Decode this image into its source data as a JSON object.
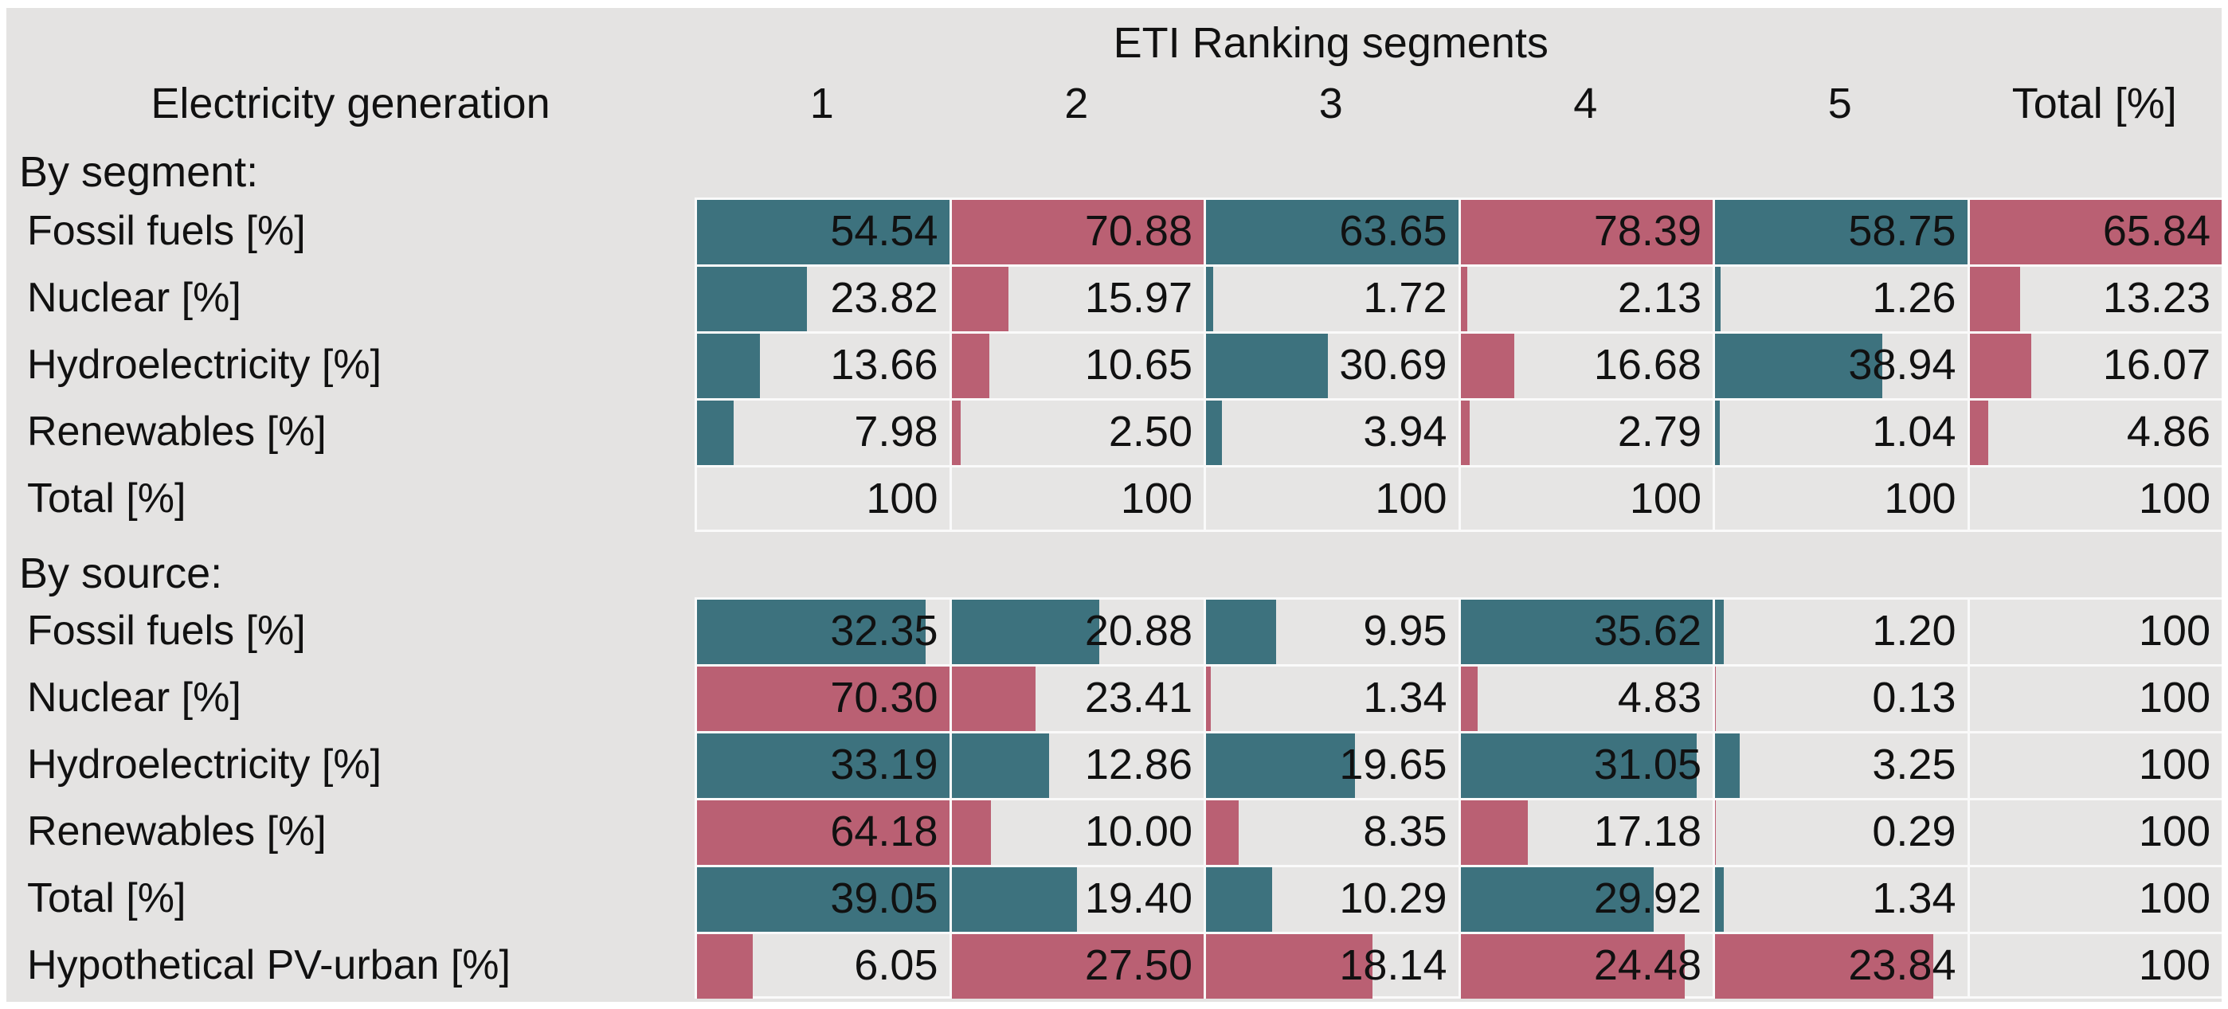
{
  "colors": {
    "teal": "#3d727e",
    "rose": "#ba6073",
    "panel_background": "#e4e3e2",
    "cell_background": "#e6e5e4",
    "separator": "#fafafa",
    "page_background": "#ffffff",
    "text": "#111111"
  },
  "table": {
    "title": "ETI Ranking segments",
    "row_header": "Electricity generation",
    "columns": [
      "1",
      "2",
      "3",
      "4",
      "5",
      "Total [%]"
    ],
    "sections": [
      {
        "label": "By segment:",
        "bar_scaling": "column",
        "column_colors": [
          "teal",
          "rose",
          "teal",
          "rose",
          "teal",
          "rose"
        ],
        "rows": [
          {
            "label": "Fossil fuels [%]",
            "values": [
              "54.54",
              "70.88",
              "63.65",
              "78.39",
              "58.75",
              "65.84"
            ]
          },
          {
            "label": "Nuclear [%]",
            "values": [
              "23.82",
              "15.97",
              "1.72",
              "2.13",
              "1.26",
              "13.23"
            ]
          },
          {
            "label": "Hydroelectricity [%]",
            "values": [
              "13.66",
              "10.65",
              "30.69",
              "16.68",
              "38.94",
              "16.07"
            ]
          },
          {
            "label": "Renewables [%]",
            "values": [
              "7.98",
              "2.50",
              "3.94",
              "2.79",
              "1.04",
              "4.86"
            ]
          }
        ],
        "total_row": {
          "label": "Total [%]",
          "values": [
            "100",
            "100",
            "100",
            "100",
            "100",
            "100"
          ]
        }
      },
      {
        "label": "By source:",
        "bar_scaling": "row",
        "no_bar_columns": [
          5
        ],
        "rows": [
          {
            "label": "Fossil fuels [%]",
            "color": "teal",
            "values": [
              "32.35",
              "20.88",
              "9.95",
              "35.62",
              "1.20",
              "100"
            ]
          },
          {
            "label": "Nuclear [%]",
            "color": "rose",
            "values": [
              "70.30",
              "23.41",
              "1.34",
              "4.83",
              "0.13",
              "100"
            ]
          },
          {
            "label": "Hydroelectricity [%]",
            "color": "teal",
            "values": [
              "33.19",
              "12.86",
              "19.65",
              "31.05",
              "3.25",
              "100"
            ]
          },
          {
            "label": "Renewables [%]",
            "color": "rose",
            "values": [
              "64.18",
              "10.00",
              "8.35",
              "17.18",
              "0.29",
              "100"
            ]
          },
          {
            "label": "Total [%]",
            "color": "teal",
            "values": [
              "39.05",
              "19.40",
              "10.29",
              "29.92",
              "1.34",
              "100"
            ]
          },
          {
            "label": "Hypothetical PV-urban [%]",
            "color": "rose",
            "values": [
              "6.05",
              "27.50",
              "18.14",
              "24.48",
              "23.84",
              "100"
            ]
          }
        ]
      }
    ]
  },
  "chart_data": [
    {
      "type": "table",
      "title": "ETI Ranking segments",
      "section": "Electricity generation — By segment:",
      "columns": [
        "1",
        "2",
        "3",
        "4",
        "5",
        "Total [%]"
      ],
      "bar_scale": "per-column-max",
      "bar_colors_by_column": [
        "teal",
        "rose",
        "teal",
        "rose",
        "teal",
        "rose"
      ],
      "rows": [
        {
          "name": "Fossil fuels [%]",
          "values": [
            54.54,
            70.88,
            63.65,
            78.39,
            58.75,
            65.84
          ]
        },
        {
          "name": "Nuclear [%]",
          "values": [
            23.82,
            15.97,
            1.72,
            2.13,
            1.26,
            13.23
          ]
        },
        {
          "name": "Hydroelectricity [%]",
          "values": [
            13.66,
            10.65,
            30.69,
            16.68,
            38.94,
            16.07
          ]
        },
        {
          "name": "Renewables [%]",
          "values": [
            7.98,
            2.5,
            3.94,
            2.79,
            1.04,
            4.86
          ]
        },
        {
          "name": "Total [%]",
          "values": [
            100,
            100,
            100,
            100,
            100,
            100
          ]
        }
      ]
    },
    {
      "type": "table",
      "title": "ETI Ranking segments",
      "section": "Electricity generation — By source:",
      "columns": [
        "1",
        "2",
        "3",
        "4",
        "5",
        "Total [%]"
      ],
      "bar_scale": "per-row-max-excluding-total",
      "bar_colors_by_row": [
        "teal",
        "rose",
        "teal",
        "rose",
        "teal",
        "rose"
      ],
      "rows": [
        {
          "name": "Fossil fuels [%]",
          "values": [
            32.35,
            20.88,
            9.95,
            35.62,
            1.2,
            100
          ]
        },
        {
          "name": "Nuclear [%]",
          "values": [
            70.3,
            23.41,
            1.34,
            4.83,
            0.13,
            100
          ]
        },
        {
          "name": "Hydroelectricity [%]",
          "values": [
            33.19,
            12.86,
            19.65,
            31.05,
            3.25,
            100
          ]
        },
        {
          "name": "Renewables [%]",
          "values": [
            64.18,
            10.0,
            8.35,
            17.18,
            0.29,
            100
          ]
        },
        {
          "name": "Total [%]",
          "values": [
            39.05,
            19.4,
            10.29,
            29.92,
            1.34,
            100
          ]
        },
        {
          "name": "Hypothetical PV-urban [%]",
          "values": [
            6.05,
            27.5,
            18.14,
            24.48,
            23.84,
            100
          ]
        }
      ]
    }
  ]
}
